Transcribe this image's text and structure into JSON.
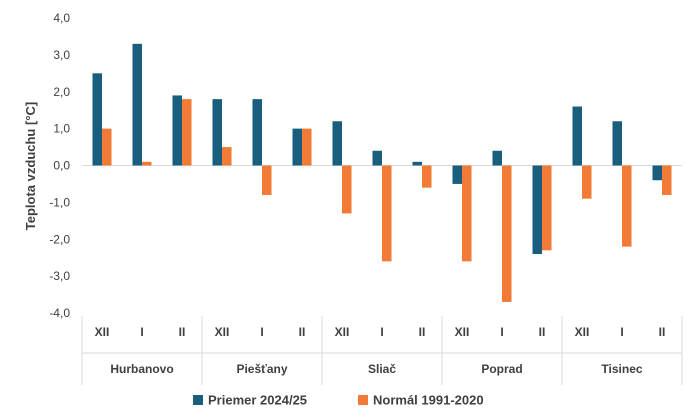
{
  "chart_data": {
    "type": "bar",
    "ylabel": "Teplota vzduchu [°C]",
    "ylim": [
      -4,
      4
    ],
    "yticks": [
      4,
      3,
      2,
      1,
      0,
      -1,
      -2,
      -3,
      -4
    ],
    "ytick_labels": [
      "4,0",
      "3,0",
      "2,0",
      "1,0",
      "0,0",
      "-1,0",
      "-2,0",
      "-3,0",
      "-4,0"
    ],
    "groups": [
      "Hurbanovo",
      "Piešťany",
      "Sliač",
      "Poprad",
      "Tisinec"
    ],
    "months": [
      "XII",
      "I",
      "II"
    ],
    "legend_position": "bottom",
    "grid": false,
    "series": [
      {
        "name": "Priemer 2024/25",
        "color": "#1a5e7e",
        "values": [
          2.5,
          3.3,
          1.9,
          1.8,
          1.8,
          1.0,
          1.2,
          0.4,
          0.1,
          -0.5,
          0.4,
          -2.4,
          1.6,
          1.2,
          -0.4
        ]
      },
      {
        "name": "Normál 1991-2020",
        "color": "#f07a36",
        "values": [
          1.0,
          0.1,
          1.8,
          0.5,
          -0.8,
          1.0,
          -1.3,
          -2.6,
          -0.6,
          -2.6,
          -3.7,
          -2.3,
          -0.9,
          -2.2,
          -0.8
        ]
      }
    ]
  }
}
